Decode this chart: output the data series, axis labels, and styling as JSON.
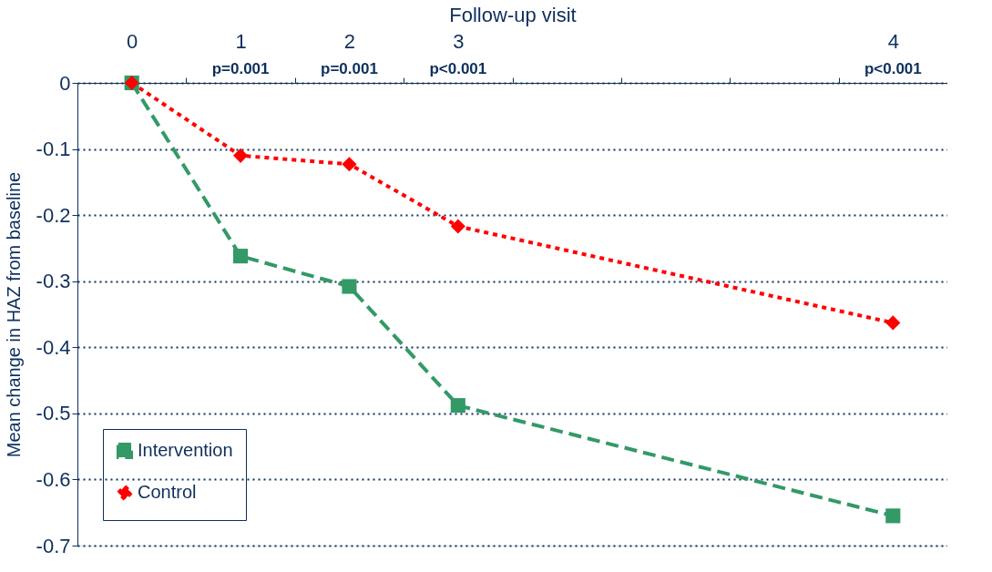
{
  "chart_data": {
    "type": "line",
    "xlabel": "Follow-up visit",
    "ylabel": "Mean change in HAZ from baseline",
    "categories": [
      "0",
      "1",
      "2",
      "3",
      null,
      null,
      null,
      "4"
    ],
    "ylim": [
      -0.7,
      0
    ],
    "yticks": [
      0,
      -0.1,
      -0.2,
      -0.3,
      -0.4,
      -0.5,
      -0.6,
      -0.7
    ],
    "grid": "y",
    "legend": "bottom left",
    "series": [
      {
        "name": "Intervention",
        "color": "#339966",
        "values": [
          0,
          -0.262,
          -0.308,
          -0.488,
          null,
          null,
          null,
          -0.655
        ],
        "marker": "square",
        "line_style": "dashed"
      },
      {
        "name": "Control",
        "color": "#ff0000",
        "values": [
          0,
          -0.11,
          -0.123,
          -0.217,
          null,
          null,
          null,
          -0.363
        ],
        "marker": "diamond",
        "line_style": "dotted"
      }
    ],
    "annotations": [
      "p=0.001",
      "p=0.001",
      "p<0.001",
      "p<0.001"
    ]
  }
}
